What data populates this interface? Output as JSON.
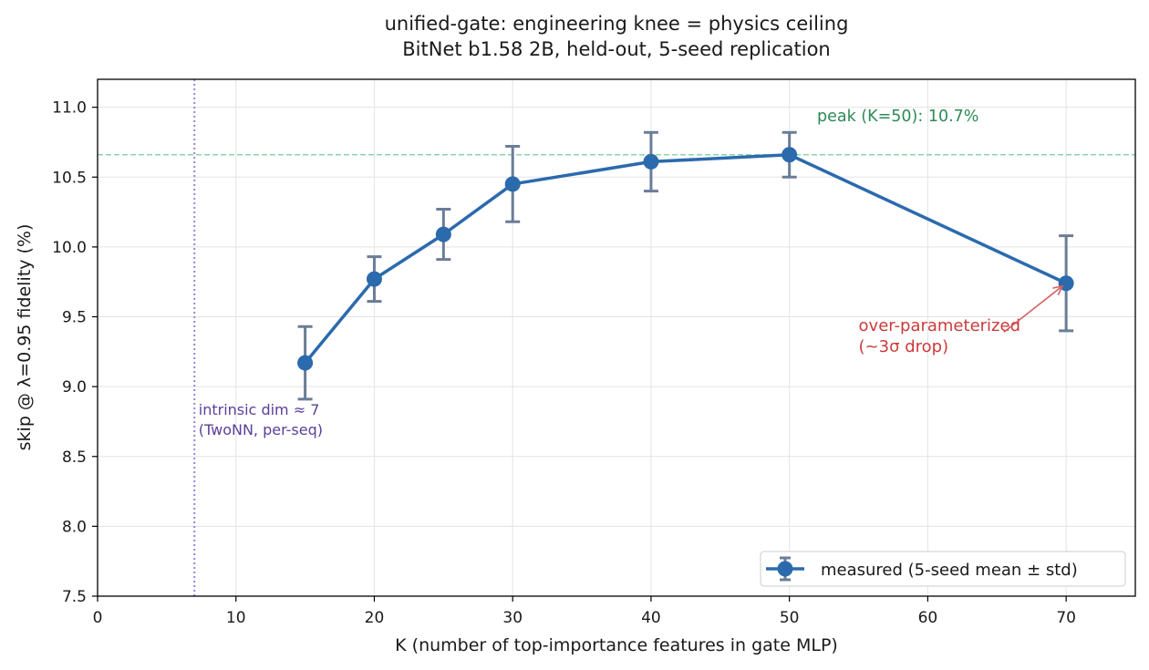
{
  "chart_data": {
    "type": "line",
    "title": [
      "unified-gate:  engineering knee = physics ceiling",
      "BitNet b1.58 2B, held-out, 5-seed replication"
    ],
    "xlabel": "K  (number of top-importance features in gate MLP)",
    "ylabel": "skip @ λ=0.95 fidelity (%)",
    "xlim": [
      0,
      75
    ],
    "ylim": [
      7.5,
      11.2
    ],
    "xticks": [
      0,
      10,
      20,
      30,
      40,
      50,
      60,
      70
    ],
    "yticks": [
      7.5,
      8.0,
      8.5,
      9.0,
      9.5,
      10.0,
      10.5,
      11.0
    ],
    "xtick_labels": [
      "0",
      "10",
      "20",
      "30",
      "40",
      "50",
      "60",
      "70"
    ],
    "ytick_labels": [
      "7.5",
      "8.0",
      "8.5",
      "9.0",
      "9.5",
      "10.0",
      "10.5",
      "11.0"
    ],
    "grid": true,
    "series": [
      {
        "name": "measured (5-seed mean ± std)",
        "x": [
          15,
          20,
          25,
          30,
          40,
          50,
          70
        ],
        "y": [
          9.17,
          9.77,
          10.09,
          10.45,
          10.61,
          10.66,
          9.74
        ],
        "err": [
          0.26,
          0.16,
          0.18,
          0.27,
          0.21,
          0.16,
          0.34
        ],
        "color": "#2b6aad",
        "errcolor": "#6b7d96"
      }
    ],
    "hline": {
      "y": 10.66,
      "color": "#8fd3ac"
    },
    "vline": {
      "x": 7,
      "color": "#8f86e0"
    },
    "annotations": {
      "peak": {
        "text": "peak (K=50): 10.7%",
        "x": 52,
        "y": 10.9,
        "color": "#2e8a57"
      },
      "intrinsic": {
        "lines": [
          "intrinsic dim ≈ 7",
          "(TwoNN, per-seq)"
        ],
        "x": 7.3,
        "y": 8.8,
        "color": "#5a3f99"
      },
      "over": {
        "lines": [
          "over-parameterized",
          "(~3σ drop)"
        ],
        "x": 55,
        "y": 9.4,
        "arrow_to": [
          70,
          9.74
        ],
        "arrow_from": [
          65.5,
          9.39
        ],
        "color": "#cc3b3b"
      }
    },
    "legend": {
      "position": "lower-right",
      "label": "measured (5-seed mean ± std)"
    }
  }
}
